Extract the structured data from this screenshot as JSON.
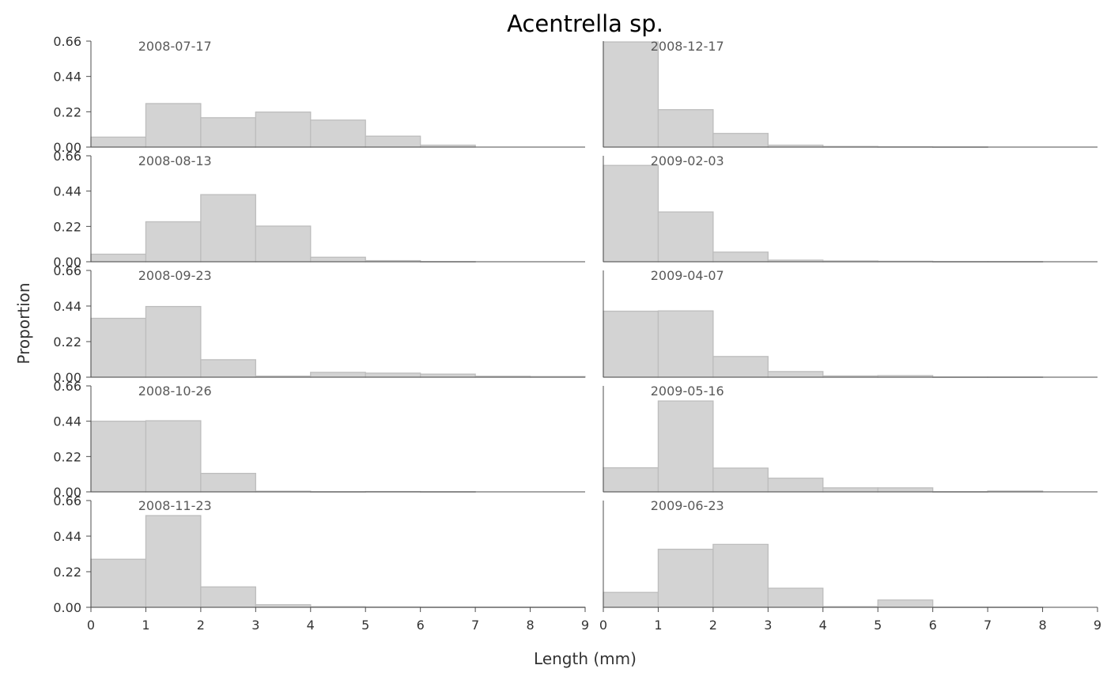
{
  "chart_data": {
    "type": "bar",
    "title": "Acentrella sp.",
    "xlabel": "Length (mm)",
    "ylabel": "Proportion",
    "xlim": [
      0,
      9
    ],
    "ylim": [
      0,
      0.66
    ],
    "x_ticks": [
      "0",
      "1",
      "2",
      "3",
      "4",
      "5",
      "6",
      "7",
      "8",
      "9"
    ],
    "y_ticks": [
      "0.00",
      "0.22",
      "0.44",
      "0.66"
    ],
    "bin_edges": [
      0,
      1,
      2,
      3,
      4,
      5,
      6,
      7,
      8,
      9
    ],
    "grid": false,
    "bar_color": "#d3d3d3",
    "bar_edge_color": "#bdbdbd",
    "panels": [
      {
        "label": "2008-07-17",
        "values": [
          0.062,
          0.271,
          0.183,
          0.218,
          0.168,
          0.068,
          0.012,
          0.0,
          0.0
        ]
      },
      {
        "label": "2008-12-17",
        "values": [
          0.655,
          0.233,
          0.085,
          0.012,
          0.004,
          0.002,
          0.001,
          0.0,
          0.0
        ]
      },
      {
        "label": "2008-08-13",
        "values": [
          0.047,
          0.249,
          0.418,
          0.222,
          0.028,
          0.007,
          0.001,
          0.0,
          0.0
        ]
      },
      {
        "label": "2009-02-03",
        "values": [
          0.6,
          0.31,
          0.06,
          0.01,
          0.005,
          0.003,
          0.001,
          0.001,
          0.0
        ]
      },
      {
        "label": "2008-09-23",
        "values": [
          0.364,
          0.437,
          0.108,
          0.007,
          0.03,
          0.025,
          0.019,
          0.006,
          0.004
        ]
      },
      {
        "label": "2009-04-07",
        "values": [
          0.408,
          0.41,
          0.128,
          0.035,
          0.008,
          0.01,
          0.001,
          0.001,
          0.0
        ]
      },
      {
        "label": "2008-10-26",
        "values": [
          0.44,
          0.443,
          0.115,
          0.004,
          0.001,
          0.002,
          0.001,
          0.0,
          0.0
        ]
      },
      {
        "label": "2009-05-16",
        "values": [
          0.15,
          0.566,
          0.148,
          0.085,
          0.025,
          0.025,
          0.001,
          0.005,
          0.0
        ]
      },
      {
        "label": "2008-11-23",
        "values": [
          0.297,
          0.567,
          0.126,
          0.016,
          0.004,
          0.002,
          0.001,
          0.001,
          0.001
        ]
      },
      {
        "label": "2009-06-23",
        "values": [
          0.092,
          0.359,
          0.389,
          0.118,
          0.004,
          0.045,
          0.001,
          0.001,
          0.0
        ]
      }
    ]
  }
}
